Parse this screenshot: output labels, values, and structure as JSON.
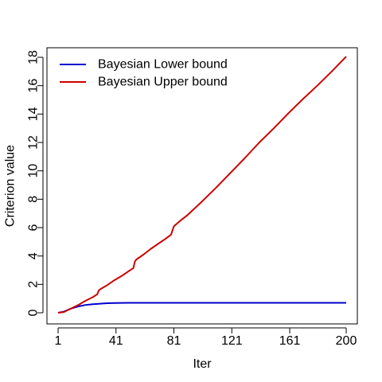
{
  "chart_data": {
    "type": "line",
    "title": "",
    "xlabel": "Iter",
    "ylabel": "Criterion value",
    "xlim": [
      1,
      200
    ],
    "ylim": [
      -0.4,
      18.8
    ],
    "xticks": [
      1,
      41,
      81,
      121,
      161,
      200
    ],
    "xtick_labels": [
      "1",
      "41",
      "81",
      "121",
      "161",
      "200"
    ],
    "yticks": [
      0,
      2,
      4,
      6,
      8,
      10,
      12,
      14,
      16,
      18
    ],
    "ytick_labels": [
      "0",
      "2",
      "4",
      "6",
      "8",
      "10",
      "12",
      "14",
      "16",
      "18"
    ],
    "grid": false,
    "legend": {
      "position": "top-left"
    },
    "series": [
      {
        "name": "Bayesian Lower bound",
        "color": "#0000CD",
        "x": [
          1,
          5,
          10,
          15,
          20,
          25,
          30,
          35,
          40,
          50,
          60,
          80,
          100,
          120,
          140,
          160,
          180,
          200
        ],
        "y": [
          0.0,
          0.08,
          0.3,
          0.45,
          0.55,
          0.6,
          0.64,
          0.67,
          0.69,
          0.7,
          0.7,
          0.7,
          0.7,
          0.7,
          0.7,
          0.7,
          0.7,
          0.7
        ]
      },
      {
        "name": "Bayesian Upper bound",
        "color": "#CD0000",
        "x": [
          1,
          5,
          10,
          15,
          20,
          25,
          28,
          29,
          30,
          35,
          40,
          45,
          50,
          53,
          54,
          55,
          60,
          65,
          70,
          75,
          79,
          80,
          81,
          85,
          90,
          100,
          110,
          120,
          130,
          140,
          150,
          160,
          170,
          180,
          190,
          200
        ],
        "y": [
          0.0,
          0.05,
          0.3,
          0.55,
          0.85,
          1.1,
          1.3,
          1.55,
          1.65,
          1.95,
          2.3,
          2.6,
          2.95,
          3.15,
          3.6,
          3.75,
          4.1,
          4.5,
          4.85,
          5.2,
          5.5,
          5.8,
          6.1,
          6.45,
          6.85,
          7.8,
          8.8,
          9.85,
          10.9,
          12.0,
          13.0,
          14.05,
          15.05,
          16.0,
          17.0,
          18.05
        ]
      }
    ]
  }
}
